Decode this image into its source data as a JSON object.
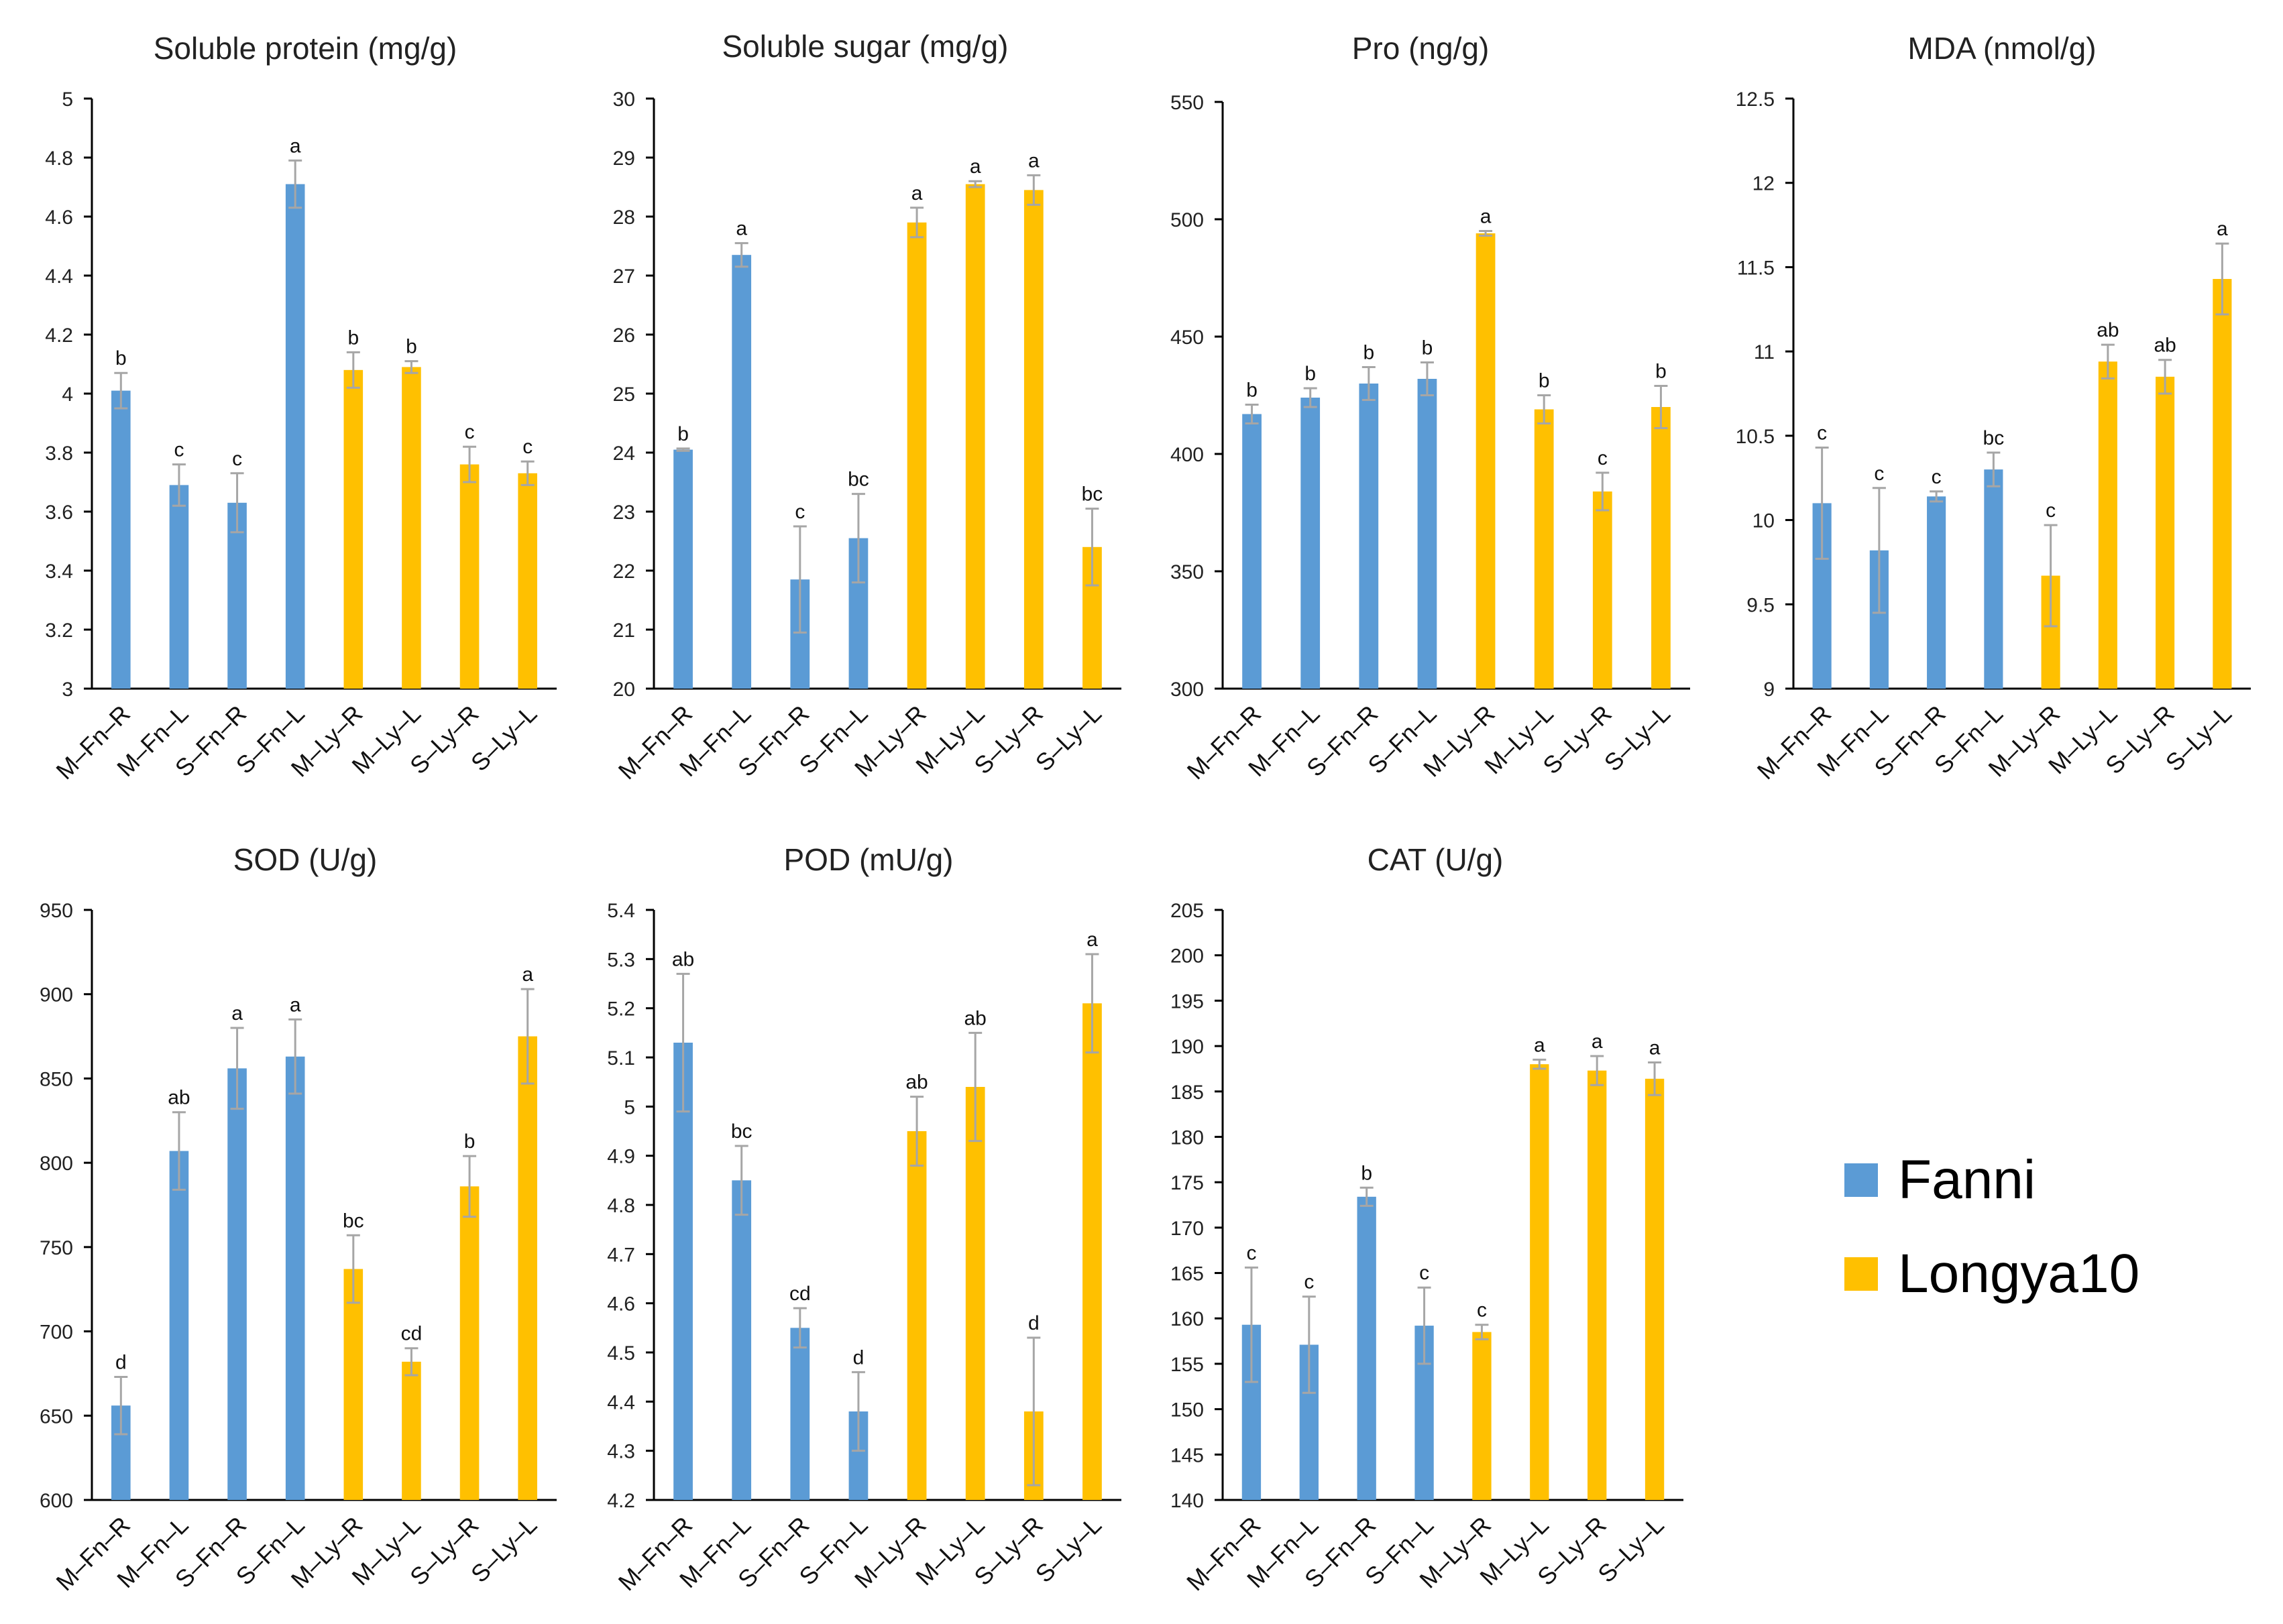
{
  "colors": {
    "fanni": "#5B9BD5",
    "longya": "#FFC000",
    "error": "#A6A6A6",
    "axis": "#000000"
  },
  "legend": {
    "items": [
      {
        "label": "Fanni",
        "color": "#5B9BD5"
      },
      {
        "label": "Longya10",
        "color": "#FFC000"
      }
    ]
  },
  "chart_data": [
    {
      "type": "bar",
      "title": "Soluble protein (mg/g)",
      "categories": [
        "M–Fn–R",
        "M–Fn–L",
        "S–Fn–R",
        "S–Fn–L",
        "M–Ly–R",
        "M–Ly–L",
        "S–Ly–R",
        "S–Ly–L"
      ],
      "values": [
        4.01,
        3.69,
        3.63,
        4.71,
        4.08,
        4.09,
        3.76,
        3.73
      ],
      "errors": [
        0.06,
        0.07,
        0.1,
        0.08,
        0.06,
        0.02,
        0.06,
        0.04
      ],
      "letters": [
        "b",
        "c",
        "c",
        "a",
        "b",
        "b",
        "c",
        "c"
      ],
      "ylim": [
        3,
        5
      ],
      "yticks": [
        "3",
        "3.2",
        "3.4",
        "3.6",
        "3.8",
        "4",
        "4.2",
        "4.4",
        "4.6",
        "4.8",
        "5"
      ]
    },
    {
      "type": "bar",
      "title": "Soluble sugar (mg/g)",
      "categories": [
        "M–Fn–R",
        "M–Fn–L",
        "S–Fn–R",
        "S–Fn–L",
        "M–Ly–R",
        "M–Ly–L",
        "S–Ly–R",
        "S–Ly–L"
      ],
      "values": [
        24.05,
        27.35,
        21.85,
        22.55,
        27.9,
        28.55,
        28.45,
        22.4
      ],
      "errors": [
        0.02,
        0.2,
        0.9,
        0.75,
        0.25,
        0.05,
        0.25,
        0.65
      ],
      "letters": [
        "b",
        "a",
        "c",
        "bc",
        "a",
        "a",
        "a",
        "bc"
      ],
      "ylim": [
        20,
        30
      ],
      "yticks": [
        "20",
        "21",
        "22",
        "23",
        "24",
        "25",
        "26",
        "27",
        "28",
        "29",
        "30"
      ]
    },
    {
      "type": "bar",
      "title": "Pro (ng/g)",
      "categories": [
        "M–Fn–R",
        "M–Fn–L",
        "S–Fn–R",
        "S–Fn–L",
        "M–Ly–R",
        "M–Ly–L",
        "S–Ly–R",
        "S–Ly–L"
      ],
      "values": [
        417,
        424,
        430,
        432,
        494,
        419,
        384,
        420
      ],
      "errors": [
        4,
        4,
        7,
        7,
        1,
        6,
        8,
        9
      ],
      "letters": [
        "b",
        "b",
        "b",
        "b",
        "a",
        "b",
        "c",
        "b"
      ],
      "ylim": [
        300,
        550
      ],
      "yticks": [
        "300",
        "350",
        "400",
        "450",
        "500",
        "550"
      ]
    },
    {
      "type": "bar",
      "title": "MDA (nmol/g)",
      "categories": [
        "M–Fn–R",
        "M–Fn–L",
        "S–Fn–R",
        "S–Fn–L",
        "M–Ly–R",
        "M–Ly–L",
        "S–Ly–R",
        "S–Ly–L"
      ],
      "values": [
        10.1,
        9.82,
        10.14,
        10.3,
        9.67,
        10.94,
        10.85,
        11.43
      ],
      "errors": [
        0.33,
        0.37,
        0.03,
        0.1,
        0.3,
        0.1,
        0.1,
        0.21
      ],
      "letters": [
        "c",
        "c",
        "c",
        "bc",
        "c",
        "ab",
        "ab",
        "a"
      ],
      "ylim": [
        9,
        12.5
      ],
      "yticks": [
        "9",
        "9.5",
        "10",
        "10.5",
        "11",
        "11.5",
        "12",
        "12.5"
      ]
    },
    {
      "type": "bar",
      "title": "SOD (U/g)",
      "categories": [
        "M–Fn–R",
        "M–Fn–L",
        "S–Fn–R",
        "S–Fn–L",
        "M–Ly–R",
        "M–Ly–L",
        "S–Ly–R",
        "S–Ly–L"
      ],
      "values": [
        656,
        807,
        856,
        863,
        737,
        682,
        786,
        875
      ],
      "errors": [
        17,
        23,
        24,
        22,
        20,
        8,
        18,
        28
      ],
      "letters": [
        "d",
        "ab",
        "a",
        "a",
        "bc",
        "cd",
        "b",
        "a"
      ],
      "ylim": [
        600,
        950
      ],
      "yticks": [
        "600",
        "650",
        "700",
        "750",
        "800",
        "850",
        "900",
        "950"
      ]
    },
    {
      "type": "bar",
      "title": "POD (mU/g)",
      "categories": [
        "M–Fn–R",
        "M–Fn–L",
        "S–Fn–R",
        "S–Fn–L",
        "M–Ly–R",
        "M–Ly–L",
        "S–Ly–R",
        "S–Ly–L"
      ],
      "values": [
        5.13,
        4.85,
        4.55,
        4.38,
        4.95,
        5.04,
        4.38,
        5.21
      ],
      "errors": [
        0.14,
        0.07,
        0.04,
        0.08,
        0.07,
        0.11,
        0.15,
        0.1
      ],
      "letters": [
        "ab",
        "bc",
        "cd",
        "d",
        "ab",
        "ab",
        "d",
        "a"
      ],
      "ylim": [
        4.2,
        5.4
      ],
      "yticks": [
        "4.2",
        "4.3",
        "4.4",
        "4.5",
        "4.6",
        "4.7",
        "4.8",
        "4.9",
        "5",
        "5.1",
        "5.2",
        "5.3",
        "5.4"
      ]
    },
    {
      "type": "bar",
      "title": "CAT (U/g)",
      "categories": [
        "M–Fn–R",
        "M–Fn–L",
        "S–Fn–R",
        "S–Fn–L",
        "M–Ly–R",
        "M–Ly–L",
        "S–Ly–R",
        "S–Ly–L"
      ],
      "values": [
        159.3,
        157.1,
        173.4,
        159.2,
        158.5,
        188.0,
        187.3,
        186.4
      ],
      "errors": [
        6.3,
        5.3,
        1.0,
        4.2,
        0.8,
        0.5,
        1.6,
        1.8
      ],
      "letters": [
        "c",
        "c",
        "b",
        "c",
        "c",
        "a",
        "a",
        "a"
      ],
      "ylim": [
        140,
        205
      ],
      "yticks": [
        "140",
        "145",
        "150",
        "155",
        "160",
        "165",
        "170",
        "175",
        "180",
        "185",
        "190",
        "195",
        "200",
        "205"
      ]
    }
  ]
}
